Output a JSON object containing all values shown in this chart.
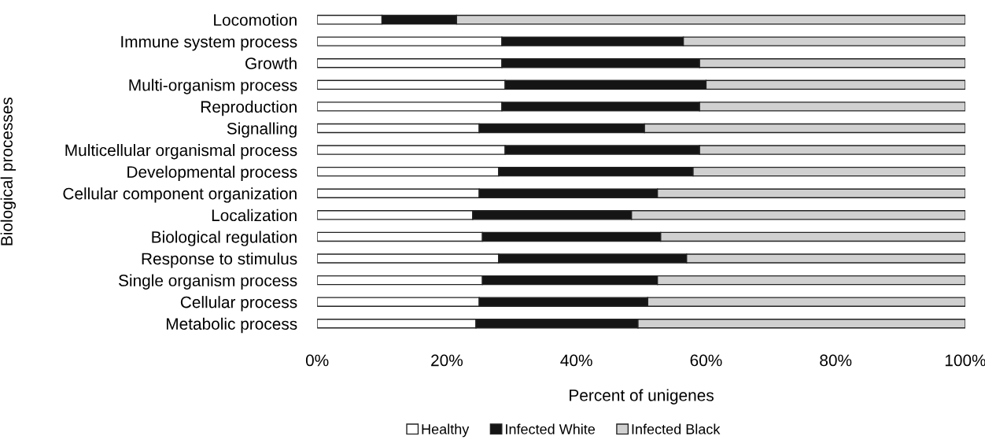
{
  "chart_data": {
    "type": "bar",
    "orientation": "horizontal",
    "stacked": true,
    "xlabel": "Percent of unigenes",
    "ylabel": "Biological processes",
    "categories": [
      "Locomotion",
      "Immune system process",
      "Growth",
      "Multi-organism process",
      "Reproduction",
      "Signalling",
      "Multicellular organismal process",
      "Developmental process",
      "Cellular component organization",
      "Localization",
      "Biological regulation",
      "Response to stimulus",
      "Single organism process",
      "Cellular process",
      "Metabolic process"
    ],
    "series": [
      {
        "name": "Healthy",
        "color": "#ffffff",
        "values": [
          10,
          28.5,
          28.5,
          29,
          28.5,
          25,
          29,
          28,
          25,
          24,
          25.5,
          28,
          25.5,
          25,
          24.5
        ]
      },
      {
        "name": "Infected White",
        "color": "#151515",
        "values": [
          11.5,
          28,
          30.5,
          31,
          30.5,
          25.5,
          30,
          30,
          27.5,
          24.5,
          27.5,
          29,
          27,
          26,
          25
        ]
      },
      {
        "name": "Infected Black",
        "color": "#d0d0d0",
        "values": [
          78.5,
          43.5,
          41,
          40,
          41,
          49.5,
          41,
          42,
          47.5,
          51.5,
          47,
          43,
          47.5,
          49,
          50.5
        ]
      }
    ],
    "xlim": [
      0,
      100
    ],
    "xticks": [
      {
        "value": 0,
        "label": "0%"
      },
      {
        "value": 20,
        "label": "20%"
      },
      {
        "value": 40,
        "label": "40%"
      },
      {
        "value": 60,
        "label": "60%"
      },
      {
        "value": 80,
        "label": "80%"
      },
      {
        "value": 100,
        "label": "100%"
      }
    ],
    "legend": "bottom",
    "grid": false
  }
}
